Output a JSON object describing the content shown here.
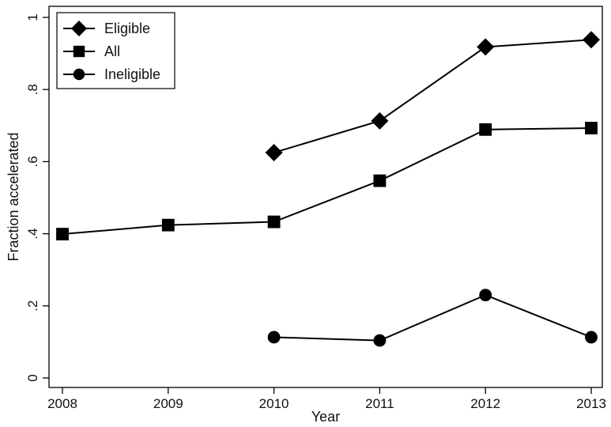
{
  "chart_data": {
    "type": "line",
    "title": "",
    "xlabel": "Year",
    "ylabel": "Fraction accelerated",
    "x": [
      2008,
      2009,
      2010,
      2011,
      2012,
      2013
    ],
    "xlim": [
      2008,
      2013
    ],
    "ylim": [
      0,
      1
    ],
    "x_ticks": [
      {
        "value": 2008,
        "label": "2008"
      },
      {
        "value": 2009,
        "label": "2009"
      },
      {
        "value": 2010,
        "label": "2010"
      },
      {
        "value": 2011,
        "label": "2011"
      },
      {
        "value": 2012,
        "label": "2012"
      },
      {
        "value": 2013,
        "label": "2013"
      }
    ],
    "y_ticks": [
      {
        "value": 0,
        "label": "0"
      },
      {
        "value": 0.2,
        "label": ".2"
      },
      {
        "value": 0.4,
        "label": ".4"
      },
      {
        "value": 0.6,
        "label": ".6"
      },
      {
        "value": 0.8,
        "label": ".8"
      },
      {
        "value": 1,
        "label": "1"
      }
    ],
    "grid": false,
    "legend": {
      "placement": "top-left"
    },
    "series": [
      {
        "name": "Eligible",
        "marker": "diamond",
        "points": [
          [
            2010,
            0.625
          ],
          [
            2011,
            0.713
          ],
          [
            2012,
            0.918
          ],
          [
            2013,
            0.938
          ]
        ]
      },
      {
        "name": "All",
        "marker": "square",
        "points": [
          [
            2008,
            0.399
          ],
          [
            2009,
            0.424
          ],
          [
            2010,
            0.433
          ],
          [
            2011,
            0.547
          ],
          [
            2012,
            0.689
          ],
          [
            2013,
            0.693
          ]
        ]
      },
      {
        "name": "Ineligible",
        "marker": "circle",
        "points": [
          [
            2010,
            0.113
          ],
          [
            2011,
            0.104
          ],
          [
            2012,
            0.23
          ],
          [
            2013,
            0.113
          ]
        ]
      }
    ]
  }
}
